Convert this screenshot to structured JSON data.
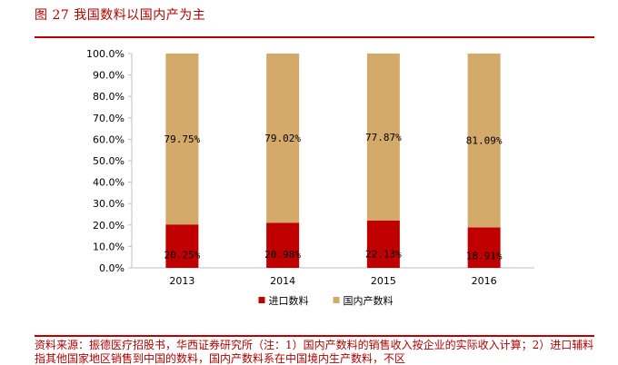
{
  "figure": {
    "title": "图 27 我国数料以国内产为主",
    "source": "资料来源：振德医疗招股书，华西证券研究所（注：1）国内产数料的销售收入按企业的实际收入计算；2）进口辅料指其他国家地区销售到中国的数料，国内产数料系在中国境内生产数料，不区"
  },
  "chart_data": {
    "type": "bar",
    "stacked": true,
    "categories": [
      "2013",
      "2014",
      "2015",
      "2016"
    ],
    "series": [
      {
        "name": "进口数料",
        "values": [
          20.25,
          20.98,
          22.13,
          18.91
        ],
        "color": "#c00000"
      },
      {
        "name": "国内产数料",
        "values": [
          79.75,
          79.02,
          77.87,
          81.09
        ],
        "color": "#d4aa6a"
      }
    ],
    "data_labels": [
      [
        "20.25%",
        "20.98%",
        "22.13%",
        "18.91%"
      ],
      [
        "79.75%",
        "79.02%",
        "77.87%",
        "81.09%"
      ]
    ],
    "y_ticks": [
      "0.0%",
      "10.0%",
      "20.0%",
      "30.0%",
      "40.0%",
      "50.0%",
      "60.0%",
      "70.0%",
      "80.0%",
      "90.0%",
      "100.0%"
    ],
    "ylim": [
      0,
      100
    ],
    "grid": false,
    "legend_position": "bottom"
  }
}
